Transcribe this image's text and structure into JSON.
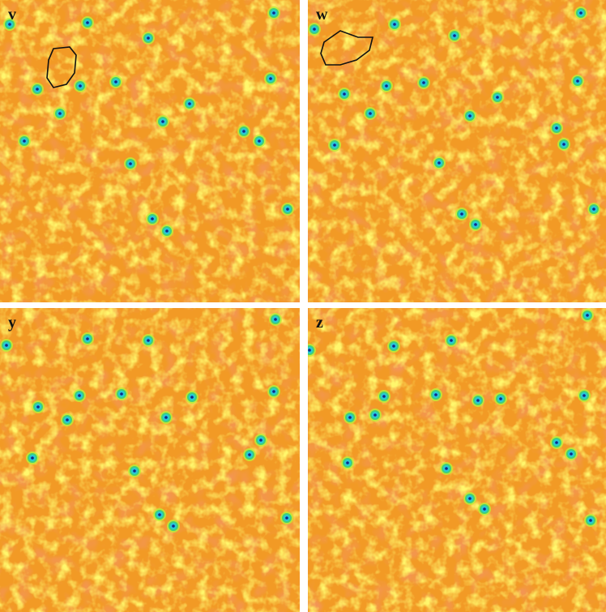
{
  "panels": [
    {
      "label": "v"
    },
    {
      "label": "w"
    },
    {
      "label": "y"
    },
    {
      "label": "z"
    }
  ]
}
